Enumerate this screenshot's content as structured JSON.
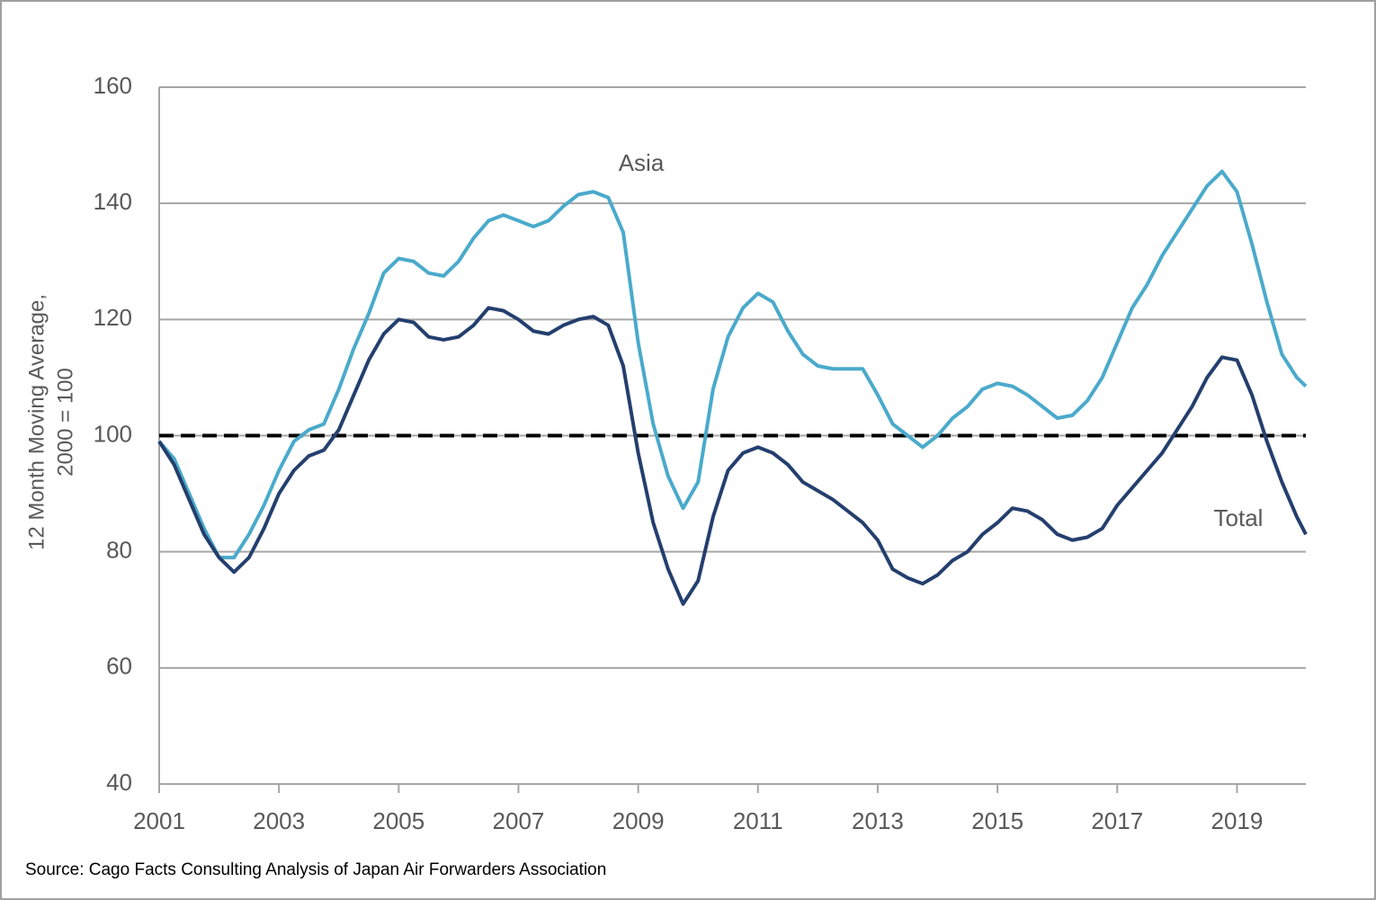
{
  "chart_data": {
    "type": "line",
    "ylabel": [
      "12 Month Moving Average,",
      "2000 = 100"
    ],
    "source": "Source: Cago Facts Consulting Analysis of Japan Air Forwarders Association",
    "x": [
      2001,
      2001.25,
      2001.5,
      2001.75,
      2002,
      2002.25,
      2002.5,
      2002.75,
      2003,
      2003.25,
      2003.5,
      2003.75,
      2004,
      2004.25,
      2004.5,
      2004.75,
      2005,
      2005.25,
      2005.5,
      2005.75,
      2006,
      2006.25,
      2006.5,
      2006.75,
      2007,
      2007.25,
      2007.5,
      2007.75,
      2008,
      2008.25,
      2008.5,
      2008.75,
      2009,
      2009.25,
      2009.5,
      2009.75,
      2010,
      2010.25,
      2010.5,
      2010.75,
      2011,
      2011.25,
      2011.5,
      2011.75,
      2012,
      2012.25,
      2012.5,
      2012.75,
      2013,
      2013.25,
      2013.5,
      2013.75,
      2014,
      2014.25,
      2014.5,
      2014.75,
      2015,
      2015.25,
      2015.5,
      2015.75,
      2016,
      2016.25,
      2016.5,
      2016.75,
      2017,
      2017.25,
      2017.5,
      2017.75,
      2018,
      2018.25,
      2018.5,
      2018.75,
      2019,
      2019.25,
      2019.5,
      2019.75,
      2020,
      2020.15
    ],
    "series": [
      {
        "name": "Asia",
        "color": "#4aaacb",
        "values": [
          99,
          96,
          90,
          84,
          79,
          79,
          83,
          88,
          94,
          99,
          101,
          102,
          108,
          115,
          121,
          128,
          130.5,
          130,
          128,
          127.5,
          130,
          134,
          137,
          138,
          137,
          136,
          137,
          139.5,
          141.5,
          142,
          141,
          135,
          116,
          102,
          93,
          87.5,
          92,
          108,
          117,
          122,
          124.5,
          123,
          118,
          114,
          112,
          111.5,
          111.5,
          111.5,
          107,
          102,
          100,
          98,
          100,
          103,
          105,
          108,
          109,
          108.5,
          107,
          105,
          103,
          103.5,
          106,
          110,
          116,
          122,
          126,
          131,
          135,
          139,
          143,
          145.5,
          142,
          133,
          123,
          114,
          110,
          108.5
        ]
      },
      {
        "name": "Total",
        "color": "#243f6e",
        "values": [
          99,
          95,
          89,
          83,
          79,
          76.5,
          79,
          84,
          90,
          94,
          96.5,
          97.5,
          101,
          107,
          113,
          117.5,
          120,
          119.5,
          117,
          116.5,
          117,
          119,
          122,
          121.5,
          120,
          118,
          117.5,
          119,
          120,
          120.5,
          119,
          112,
          97,
          85,
          77,
          71,
          75,
          86,
          94,
          97,
          98,
          97,
          95,
          92,
          90.5,
          89,
          87,
          85,
          82,
          77,
          75.5,
          74.5,
          76,
          78.5,
          80,
          83,
          85,
          87.5,
          87,
          85.5,
          83,
          82,
          82.5,
          84,
          88,
          91,
          94,
          97,
          101,
          105,
          110,
          113.5,
          113,
          107,
          99,
          92,
          86,
          83
        ]
      }
    ],
    "reference_line": 100,
    "xlim": [
      2001,
      2020.15
    ],
    "xticks": [
      2001,
      2003,
      2005,
      2007,
      2009,
      2011,
      2013,
      2015,
      2017,
      2019
    ],
    "ylim": [
      40,
      160
    ],
    "yticks": [
      40,
      60,
      80,
      100,
      120,
      140,
      160
    ],
    "grid": true
  }
}
